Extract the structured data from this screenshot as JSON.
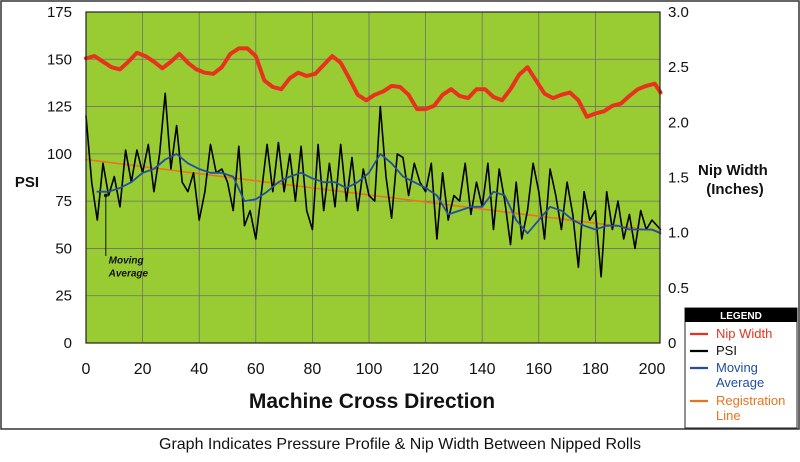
{
  "caption": "Graph Indicates Pressure Profile & Nip Width Between Nipped Rolls",
  "colors": {
    "plot_bg": "#99cc33",
    "grid": "#6f6f6f",
    "nip_width": "#e8321e",
    "psi": "#000000",
    "moving_average": "#1f4ea3",
    "registration_line": "#e8731e",
    "legend_header_bg": "#000000",
    "legend_header_text": "#ffffff",
    "legend_label_blue": "#1f4ea3",
    "legend_label_orange": "#e8731e"
  },
  "chart_data": {
    "type": "line",
    "xlabel": "Machine Cross Direction",
    "ylabel_left": "PSI",
    "ylabel_right": [
      "Nip Width",
      "(Inches)"
    ],
    "xlim": [
      0,
      200
    ],
    "ylim_left": [
      0,
      175
    ],
    "ylim_right": [
      0,
      3.0
    ],
    "x_ticks": [
      0,
      20,
      40,
      60,
      80,
      100,
      120,
      140,
      160,
      180,
      200
    ],
    "y_ticks_left": [
      0,
      25,
      50,
      75,
      100,
      125,
      150,
      175
    ],
    "y_ticks_right": [
      "0",
      "0.5",
      "1.0",
      "1.5",
      "2.0",
      "2.5",
      "3.0"
    ],
    "y_ticks_right_values": [
      0,
      0.5,
      1.0,
      1.5,
      2.0,
      2.5,
      3.0
    ],
    "grid": true,
    "annotation": {
      "text": [
        "Moving",
        "Average"
      ],
      "x": 8,
      "y": 42,
      "pointer": [
        [
          7,
          46
        ],
        [
          7,
          78
        ]
      ]
    },
    "legend": {
      "title": "LEGEND",
      "placement": "bottom-right, outside plot",
      "entries": [
        {
          "label": [
            "Nip Width"
          ],
          "series": "nip_width"
        },
        {
          "label": [
            "PSI"
          ],
          "series": "psi"
        },
        {
          "label": [
            "Moving",
            "Average"
          ],
          "series": "moving_average"
        },
        {
          "label": [
            "Registration",
            "Line"
          ],
          "series": "registration_line"
        }
      ]
    },
    "series": [
      {
        "id": "nip_width",
        "name": "Nip Width",
        "axis": "right",
        "points": [
          [
            0,
            2.58
          ],
          [
            3,
            2.6
          ],
          [
            6,
            2.55
          ],
          [
            9,
            2.5
          ],
          [
            12,
            2.48
          ],
          [
            15,
            2.55
          ],
          [
            18,
            2.63
          ],
          [
            21,
            2.6
          ],
          [
            24,
            2.55
          ],
          [
            27,
            2.49
          ],
          [
            30,
            2.55
          ],
          [
            33,
            2.62
          ],
          [
            36,
            2.54
          ],
          [
            39,
            2.48
          ],
          [
            42,
            2.45
          ],
          [
            45,
            2.44
          ],
          [
            48,
            2.5
          ],
          [
            51,
            2.62
          ],
          [
            54,
            2.67
          ],
          [
            57,
            2.67
          ],
          [
            60,
            2.6
          ],
          [
            63,
            2.38
          ],
          [
            66,
            2.32
          ],
          [
            69,
            2.3
          ],
          [
            72,
            2.4
          ],
          [
            75,
            2.45
          ],
          [
            78,
            2.42
          ],
          [
            81,
            2.44
          ],
          [
            84,
            2.52
          ],
          [
            87,
            2.6
          ],
          [
            90,
            2.54
          ],
          [
            93,
            2.4
          ],
          [
            96,
            2.25
          ],
          [
            99,
            2.2
          ],
          [
            102,
            2.25
          ],
          [
            105,
            2.28
          ],
          [
            108,
            2.33
          ],
          [
            111,
            2.32
          ],
          [
            114,
            2.25
          ],
          [
            117,
            2.12
          ],
          [
            120,
            2.12
          ],
          [
            123,
            2.15
          ],
          [
            126,
            2.25
          ],
          [
            129,
            2.3
          ],
          [
            132,
            2.24
          ],
          [
            135,
            2.22
          ],
          [
            138,
            2.3
          ],
          [
            141,
            2.3
          ],
          [
            144,
            2.23
          ],
          [
            147,
            2.2
          ],
          [
            150,
            2.3
          ],
          [
            153,
            2.43
          ],
          [
            156,
            2.5
          ],
          [
            159,
            2.38
          ],
          [
            162,
            2.26
          ],
          [
            165,
            2.22
          ],
          [
            168,
            2.25
          ],
          [
            171,
            2.27
          ],
          [
            174,
            2.2
          ],
          [
            177,
            2.05
          ],
          [
            180,
            2.08
          ],
          [
            183,
            2.1
          ],
          [
            186,
            2.15
          ],
          [
            189,
            2.17
          ],
          [
            192,
            2.24
          ],
          [
            195,
            2.3
          ],
          [
            198,
            2.33
          ],
          [
            201,
            2.35
          ],
          [
            203,
            2.27
          ]
        ]
      },
      {
        "id": "psi",
        "name": "PSI",
        "axis": "left",
        "points": [
          [
            0,
            120
          ],
          [
            2,
            85
          ],
          [
            4,
            65
          ],
          [
            6,
            95
          ],
          [
            8,
            78
          ],
          [
            10,
            88
          ],
          [
            12,
            72
          ],
          [
            14,
            102
          ],
          [
            16,
            85
          ],
          [
            18,
            102
          ],
          [
            20,
            90
          ],
          [
            22,
            105
          ],
          [
            24,
            80
          ],
          [
            26,
            100
          ],
          [
            28,
            132
          ],
          [
            30,
            92
          ],
          [
            32,
            115
          ],
          [
            34,
            85
          ],
          [
            36,
            80
          ],
          [
            38,
            90
          ],
          [
            40,
            65
          ],
          [
            42,
            80
          ],
          [
            44,
            105
          ],
          [
            46,
            90
          ],
          [
            48,
            92
          ],
          [
            50,
            85
          ],
          [
            52,
            70
          ],
          [
            54,
            104
          ],
          [
            56,
            62
          ],
          [
            58,
            70
          ],
          [
            60,
            55
          ],
          [
            62,
            80
          ],
          [
            64,
            105
          ],
          [
            66,
            80
          ],
          [
            68,
            106
          ],
          [
            70,
            80
          ],
          [
            72,
            100
          ],
          [
            74,
            75
          ],
          [
            76,
            104
          ],
          [
            78,
            70
          ],
          [
            80,
            60
          ],
          [
            82,
            105
          ],
          [
            84,
            70
          ],
          [
            86,
            95
          ],
          [
            88,
            72
          ],
          [
            90,
            105
          ],
          [
            92,
            75
          ],
          [
            94,
            98
          ],
          [
            96,
            70
          ],
          [
            98,
            92
          ],
          [
            100,
            78
          ],
          [
            102,
            75
          ],
          [
            104,
            125
          ],
          [
            106,
            88
          ],
          [
            108,
            66
          ],
          [
            110,
            100
          ],
          [
            112,
            98
          ],
          [
            114,
            78
          ],
          [
            116,
            95
          ],
          [
            118,
            85
          ],
          [
            120,
            80
          ],
          [
            122,
            95
          ],
          [
            124,
            55
          ],
          [
            126,
            90
          ],
          [
            128,
            65
          ],
          [
            130,
            78
          ],
          [
            132,
            75
          ],
          [
            134,
            95
          ],
          [
            136,
            68
          ],
          [
            138,
            85
          ],
          [
            140,
            72
          ],
          [
            142,
            95
          ],
          [
            144,
            60
          ],
          [
            146,
            92
          ],
          [
            148,
            75
          ],
          [
            150,
            52
          ],
          [
            152,
            85
          ],
          [
            154,
            55
          ],
          [
            156,
            70
          ],
          [
            158,
            95
          ],
          [
            160,
            80
          ],
          [
            162,
            55
          ],
          [
            164,
            92
          ],
          [
            166,
            78
          ],
          [
            168,
            60
          ],
          [
            170,
            85
          ],
          [
            172,
            68
          ],
          [
            174,
            40
          ],
          [
            176,
            80
          ],
          [
            178,
            65
          ],
          [
            180,
            70
          ],
          [
            182,
            35
          ],
          [
            184,
            80
          ],
          [
            186,
            60
          ],
          [
            188,
            75
          ],
          [
            190,
            55
          ],
          [
            192,
            68
          ],
          [
            194,
            50
          ],
          [
            196,
            70
          ],
          [
            198,
            60
          ],
          [
            200,
            65
          ],
          [
            203,
            60
          ]
        ]
      },
      {
        "id": "moving_average",
        "name": "Moving Average",
        "axis": "left",
        "points": [
          [
            4,
            80
          ],
          [
            8,
            80
          ],
          [
            12,
            82
          ],
          [
            16,
            85
          ],
          [
            20,
            90
          ],
          [
            24,
            92
          ],
          [
            28,
            97
          ],
          [
            32,
            100
          ],
          [
            36,
            95
          ],
          [
            40,
            92
          ],
          [
            44,
            90
          ],
          [
            48,
            90
          ],
          [
            52,
            88
          ],
          [
            56,
            75
          ],
          [
            60,
            76
          ],
          [
            64,
            80
          ],
          [
            68,
            85
          ],
          [
            72,
            88
          ],
          [
            76,
            90
          ],
          [
            80,
            87
          ],
          [
            84,
            85
          ],
          [
            88,
            85
          ],
          [
            92,
            82
          ],
          [
            96,
            85
          ],
          [
            100,
            90
          ],
          [
            104,
            100
          ],
          [
            108,
            95
          ],
          [
            112,
            88
          ],
          [
            116,
            85
          ],
          [
            120,
            82
          ],
          [
            124,
            78
          ],
          [
            128,
            68
          ],
          [
            132,
            70
          ],
          [
            136,
            72
          ],
          [
            140,
            72
          ],
          [
            144,
            80
          ],
          [
            148,
            78
          ],
          [
            152,
            65
          ],
          [
            156,
            58
          ],
          [
            160,
            65
          ],
          [
            164,
            72
          ],
          [
            168,
            70
          ],
          [
            172,
            65
          ],
          [
            176,
            62
          ],
          [
            180,
            60
          ],
          [
            184,
            62
          ],
          [
            188,
            62
          ],
          [
            192,
            60
          ],
          [
            196,
            60
          ],
          [
            200,
            60
          ],
          [
            203,
            58
          ]
        ]
      },
      {
        "id": "registration_line",
        "name": "Registration Line",
        "axis": "left",
        "points": [
          [
            0,
            97
          ],
          [
            203,
            59
          ]
        ]
      }
    ]
  }
}
